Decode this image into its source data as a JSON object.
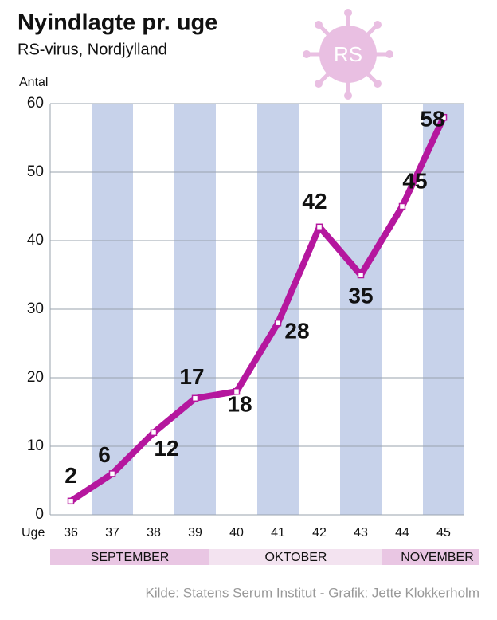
{
  "chart_data": {
    "type": "line",
    "title": "Nyindlagte pr. uge",
    "subtitle": "RS-virus, Nordjylland",
    "icon_label": "RS",
    "y_label": "Antal",
    "x_label": "Uge",
    "categories": [
      "36",
      "37",
      "38",
      "39",
      "40",
      "41",
      "42",
      "43",
      "44",
      "45"
    ],
    "values": [
      2,
      6,
      12,
      17,
      18,
      28,
      42,
      35,
      45,
      58
    ],
    "color": "#b5179e",
    "ylim": [
      0,
      60
    ],
    "yticks": [
      0,
      10,
      20,
      30,
      40,
      50,
      60
    ],
    "grid": true,
    "months": [
      "SEPTEMBER",
      "OKTOBER",
      "NOVEMBER"
    ],
    "source": "Kilde: Statens Serum Institut -  Grafik: Jette Klokkerholm"
  }
}
